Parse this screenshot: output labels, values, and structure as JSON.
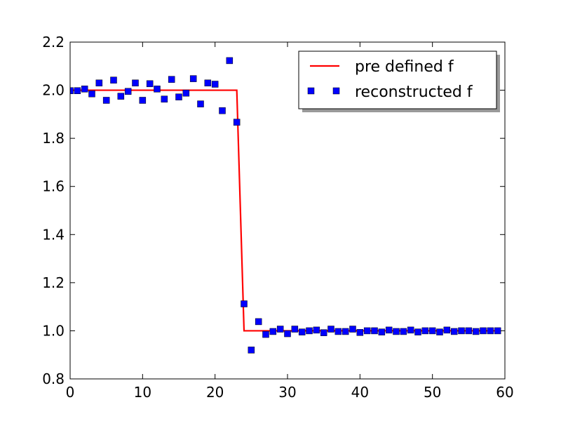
{
  "chart_data": {
    "type": "line",
    "title": "",
    "xlabel": "",
    "ylabel": "",
    "xlim": [
      0,
      60
    ],
    "ylim": [
      0.8,
      2.2
    ],
    "xticks": [
      "0",
      "10",
      "20",
      "30",
      "40",
      "50",
      "60"
    ],
    "yticks": [
      "0.8",
      "1.0",
      "1.2",
      "1.4",
      "1.6",
      "1.8",
      "2.0",
      "2.2"
    ],
    "grid": false,
    "legend_position": "top-right",
    "series": [
      {
        "name": "pre defined f",
        "kind": "line",
        "color": "#ff0000",
        "x": [
          0,
          23,
          24,
          59
        ],
        "y": [
          2.0,
          2.0,
          1.0,
          1.0
        ]
      },
      {
        "name": "reconstructed f",
        "kind": "scatter",
        "marker": "square",
        "color": "#0000ff",
        "x": [
          0,
          1,
          2,
          3,
          4,
          5,
          6,
          7,
          8,
          9,
          10,
          11,
          12,
          13,
          14,
          15,
          16,
          17,
          18,
          19,
          20,
          21,
          22,
          23,
          24,
          25,
          26,
          27,
          28,
          29,
          30,
          31,
          32,
          33,
          34,
          35,
          36,
          37,
          38,
          39,
          40,
          41,
          42,
          43,
          44,
          45,
          46,
          47,
          48,
          49,
          50,
          51,
          52,
          53,
          54,
          55,
          56,
          57,
          58,
          59
        ],
        "y": [
          1.998,
          1.998,
          2.005,
          1.985,
          2.03,
          1.958,
          2.042,
          1.975,
          1.995,
          2.03,
          1.958,
          2.027,
          2.005,
          1.963,
          2.045,
          1.972,
          1.988,
          2.048,
          1.943,
          2.03,
          2.025,
          1.915,
          2.123,
          1.867,
          1.112,
          0.92,
          1.038,
          0.985,
          0.997,
          1.007,
          0.988,
          1.007,
          0.995,
          1.0,
          1.003,
          0.992,
          1.007,
          0.997,
          0.997,
          1.007,
          0.993,
          1.0,
          1.0,
          0.995,
          1.003,
          0.997,
          0.997,
          1.003,
          0.995,
          1.0,
          1.0,
          0.995,
          1.003,
          0.997,
          1.0,
          1.0,
          0.997,
          1.0,
          1.0,
          1.0
        ]
      }
    ]
  }
}
